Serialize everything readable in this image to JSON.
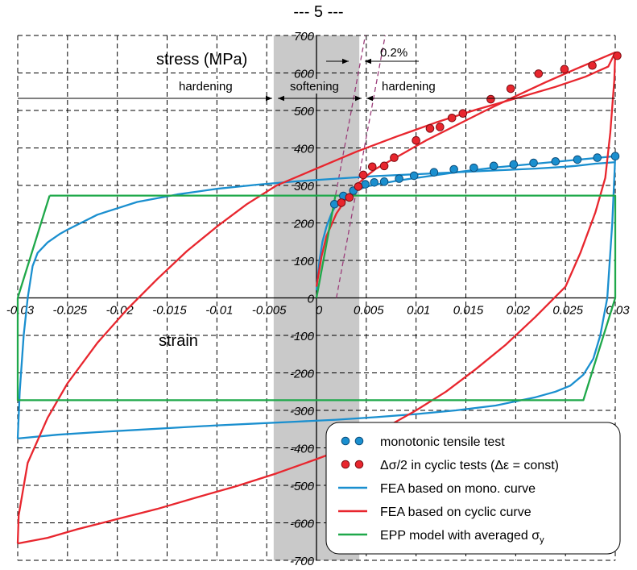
{
  "page_title": "--- 5 ---",
  "colors": {
    "mono": "#1a8fcf",
    "cyclic": "#e8262e",
    "epp": "#1fa84a",
    "band": "#c9c9c9",
    "elastic_dash": "#9b3d7a"
  },
  "chart_data": {
    "type": "line",
    "xlabel": "strain",
    "ylabel": "stress (MPa)",
    "xlim": [
      -0.03,
      0.03
    ],
    "ylim": [
      -700,
      700
    ],
    "x_ticks": [
      "-0.03",
      "-0.025",
      "-0.02",
      "-0.015",
      "-0.01",
      "-0.005",
      "0",
      "0.005",
      "0.01",
      "0.015",
      "0.02",
      "0.025",
      "0.03"
    ],
    "x_tick_values": [
      -0.03,
      -0.025,
      -0.02,
      -0.015,
      -0.01,
      -0.005,
      0,
      0.005,
      0.01,
      0.015,
      0.02,
      0.025,
      0.03
    ],
    "y_ticks": [
      "700",
      "600",
      "500",
      "400",
      "300",
      "200",
      "100",
      "0",
      "-100",
      "-200",
      "-300",
      "-400",
      "-500",
      "-600",
      "-700"
    ],
    "y_tick_values": [
      700,
      600,
      500,
      400,
      300,
      200,
      100,
      0,
      -100,
      -200,
      -300,
      -400,
      -500,
      -600,
      -700
    ],
    "grid": true,
    "legend_position": "bottom-right",
    "softening_band": [
      -0.0043,
      0.0043
    ],
    "region_labels": {
      "hardening_left": "hardening",
      "softening": "softening",
      "hardening_right": "hardening"
    },
    "offset_label": "0.2%",
    "offset_lines": [
      {
        "x": [
          0.0,
          0.0049
        ],
        "y": [
          0,
          700
        ]
      },
      {
        "x": [
          0.002,
          0.0069
        ],
        "y": [
          0,
          700
        ]
      }
    ],
    "series": [
      {
        "name": "monotonic tensile test",
        "kind": "points",
        "x": [
          0.0018,
          0.0027,
          0.0037,
          0.0049,
          0.0058,
          0.0068,
          0.0083,
          0.0098,
          0.0118,
          0.0138,
          0.0158,
          0.0178,
          0.0198,
          0.0218,
          0.024,
          0.0262,
          0.0282,
          0.03
        ],
        "y": [
          250,
          272,
          286,
          303,
          308,
          310,
          318,
          326,
          335,
          343,
          347,
          352,
          356,
          360,
          364,
          369,
          374,
          378
        ]
      },
      {
        "name": "Δσ/2 in cyclic tests (Δε = const)",
        "kind": "points",
        "x": [
          0.0025,
          0.0033,
          0.0042,
          0.0047,
          0.0056,
          0.0068,
          0.0078,
          0.01,
          0.0114,
          0.0124,
          0.0136,
          0.0147,
          0.0175,
          0.0195,
          0.0223,
          0.0249,
          0.0277,
          0.0302
        ],
        "y": [
          254,
          268,
          297,
          328,
          350,
          352,
          374,
          420,
          452,
          456,
          480,
          492,
          530,
          558,
          598,
          610,
          620,
          646
        ]
      },
      {
        "name": "FEA based on mono. curve",
        "kind": "line",
        "x": [
          -0.0298,
          -0.0296,
          -0.029,
          -0.028,
          -0.0265,
          -0.025,
          -0.022,
          -0.018,
          -0.014,
          -0.01,
          -0.006,
          -0.002,
          0.002,
          0.006,
          0.01,
          0.014,
          0.018,
          0.022,
          0.025,
          0.026,
          0.027,
          0.0278,
          0.0285,
          0.0291,
          0.0296,
          0.03,
          0.0295,
          0.0292,
          0.0288,
          0.0283,
          0.0275,
          0.026,
          0.024,
          0.02,
          0.015,
          0.01,
          0.005,
          0.0,
          -0.005,
          -0.01,
          -0.015,
          -0.02,
          -0.025,
          -0.03,
          0.0,
          0.0003,
          0.0006,
          0.001,
          0.0015,
          0.002,
          0.003,
          0.004,
          0.005,
          0.0065,
          0.008,
          0.01,
          0.014,
          0.018,
          0.022,
          0.026,
          0.03
        ],
        "y": [
          -375,
          -200,
          0,
          85,
          148,
          182,
          222,
          256,
          276,
          291,
          302,
          311,
          318,
          325,
          330,
          335,
          340,
          345,
          350,
          200,
          0,
          -100,
          -162,
          -205,
          -234,
          -250,
          -242,
          -238,
          -234,
          -230,
          -226,
          -215,
          -200,
          -182,
          -150,
          -320,
          -318,
          -310,
          -318,
          -327,
          -338,
          -350,
          -362,
          -375,
          20,
          100,
          150,
          190,
          225,
          250,
          272,
          286,
          297,
          305,
          312,
          320,
          335,
          348,
          358,
          368,
          378
        ]
      },
      {
        "name": "FEA based on cyclic curve",
        "kind": "line",
        "x": [
          -0.03,
          -0.0299,
          -0.029,
          -0.027,
          -0.025,
          -0.022,
          -0.019,
          -0.016,
          -0.013,
          -0.01,
          -0.007,
          -0.004,
          0.0,
          0.004,
          0.008,
          0.012,
          0.016,
          0.02,
          0.024,
          0.027,
          0.0293,
          0.03,
          0.0299,
          0.0295,
          0.029,
          0.028,
          0.0265,
          0.025,
          0.022,
          0.019,
          0.016,
          0.013,
          0.01,
          0.007,
          0.004,
          0.0,
          -0.004,
          -0.008,
          -0.012,
          -0.016,
          -0.02,
          -0.024,
          -0.027,
          -0.03,
          0.0,
          0.0005,
          0.001,
          0.002,
          0.003,
          0.004,
          0.005,
          0.006,
          0.007,
          0.009,
          0.011,
          0.014,
          0.017,
          0.02,
          0.023,
          0.026,
          0.03
        ],
        "y": [
          -655,
          -580,
          -440,
          -320,
          -228,
          -120,
          -30,
          50,
          125,
          190,
          250,
          300,
          345,
          390,
          430,
          468,
          502,
          532,
          563,
          590,
          617,
          655,
          580,
          440,
          320,
          228,
          120,
          30,
          -50,
          -125,
          -190,
          -250,
          -300,
          -345,
          -390,
          -430,
          -468,
          -502,
          -532,
          -563,
          -590,
          -617,
          -640,
          -655,
          30,
          110,
          165,
          225,
          265,
          300,
          325,
          345,
          360,
          390,
          420,
          460,
          500,
          538,
          575,
          610,
          655
        ]
      },
      {
        "name": "EPP model with averaged σy",
        "kind": "line",
        "x": [
          -0.0268,
          0.03,
          0.03,
          0.0268,
          -0.03,
          -0.03,
          -0.0268,
          0.0,
          0.0019
        ],
        "y": [
          273,
          273,
          0,
          -273,
          -273,
          0,
          273,
          0,
          273
        ]
      }
    ]
  },
  "legend": {
    "items": [
      {
        "label": "monotonic tensile test",
        "symbol": "dots",
        "color": "#1a8fcf"
      },
      {
        "label": "Δσ/2 in cyclic tests (Δε = const)",
        "symbol": "dots",
        "color": "#e8262e"
      },
      {
        "label": "FEA based on mono. curve",
        "symbol": "line",
        "color": "#1a8fcf"
      },
      {
        "label": "FEA based on cyclic curve",
        "symbol": "line",
        "color": "#e8262e"
      },
      {
        "label": "EPP model with averaged σ",
        "subscript": "y",
        "symbol": "line",
        "color": "#1fa84a"
      }
    ]
  }
}
